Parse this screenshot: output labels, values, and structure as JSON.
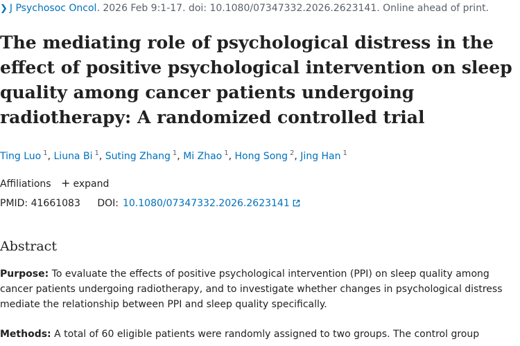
{
  "citation": {
    "journal": "J Psychosoc Oncol.",
    "details": " 2026 Feb 9:1-17. doi: 10.1080/07347332.2026.2623141. Online ahead of print."
  },
  "title": "The mediating role of psychological distress in the effect of positive psychological intervention on sleep quality among cancer patients undergoing radiotherapy: A randomized controlled trial",
  "authors": [
    {
      "name": "Ting Luo",
      "aff": "1"
    },
    {
      "name": "Liuna Bi",
      "aff": "1"
    },
    {
      "name": "Suting Zhang",
      "aff": "1"
    },
    {
      "name": "Mi Zhao",
      "aff": "1"
    },
    {
      "name": "Hong Song",
      "aff": "2"
    },
    {
      "name": "Jing Han",
      "aff": "1"
    }
  ],
  "author_separator": ", ",
  "affiliations": {
    "label": "Affiliations",
    "toggle": "expand"
  },
  "ids": {
    "pmid_label": "PMID:",
    "pmid": "41661083",
    "doi_label": "DOI:",
    "doi": "10.1080/07347332.2026.2623141"
  },
  "abstract": {
    "heading": "Abstract",
    "purpose_label": "Purpose:",
    "purpose_text": " To evaluate the effects of positive psychological intervention (PPI) on sleep quality among cancer patients undergoing radiotherapy, and to investigate whether changes in psychological distress mediate the relationship between PPI and sleep quality specifically.",
    "methods_label": "Methods:",
    "methods_text": " A total of 60 eligible patients were randomly assigned to two groups. The control group"
  },
  "colors": {
    "link": "#0071bc",
    "text": "#212121",
    "muted": "#5b616b"
  },
  "icons": [
    "chevron-right-icon",
    "plus-icon",
    "external-link-icon"
  ]
}
